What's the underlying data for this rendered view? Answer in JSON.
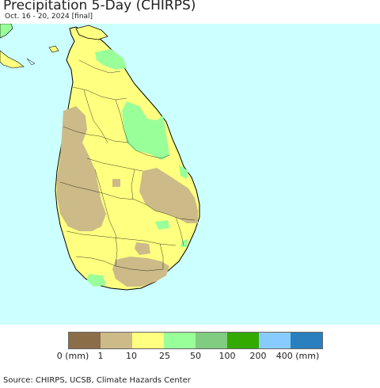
{
  "header": {
    "title": "Precipitation 5-Day (CHIRPS)",
    "subtitle": "Oct. 16 - 20, 2024 [final]"
  },
  "map": {
    "region": "Sri Lanka",
    "ocean_color": "#ccffff",
    "boundary_color": "#000000"
  },
  "legend": {
    "colors": [
      "#8c6d4a",
      "#ccbb88",
      "#ffff80",
      "#99ff99",
      "#80cc80",
      "#33aa00",
      "#88ccff",
      "#2a7fbf"
    ],
    "ticks": [
      "0 (mm)",
      "1",
      "10",
      "25",
      "50",
      "100",
      "200",
      "400 (mm)"
    ]
  },
  "footer": {
    "source": "Source: CHIRPS, UCSB, Climate Hazards Center"
  }
}
